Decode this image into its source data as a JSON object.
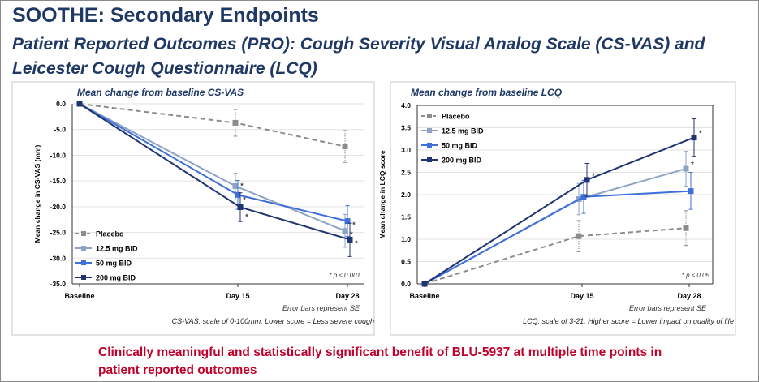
{
  "title": "SOOTHE: Secondary Endpoints",
  "subtitle": "Patient Reported Outcomes (PRO): Cough Severity Visual Analog Scale (CS-VAS) and Leicester Cough Questionnaire (LCQ)",
  "footer": "Clinically meaningful and statistically significant benefit of BLU-5937 at multiple time points in patient reported outcomes",
  "chart_data": [
    {
      "type": "line",
      "title": "Mean change from baseline CS-VAS",
      "ylabel": "Mean change in CS-VAS (mm)",
      "categories": [
        "Baseline",
        "Day 15",
        "Day 28"
      ],
      "ylim": [
        -35,
        0
      ],
      "yticks": [
        "0.0",
        "-5.0",
        "-10.0",
        "-15.0",
        "-20.0",
        "-25.0",
        "-30.0",
        "-35.0"
      ],
      "grid": true,
      "legend": "bottom-left",
      "significance_note": "* p ≤ 0.001",
      "error_note": "Error bars represent SE",
      "scale_note": "CS-VAS: scale of 0-100mm; Lower score = Less severe cough",
      "series": [
        {
          "name": "Placebo",
          "color": "#8c8c8c",
          "dashed": true,
          "values": [
            0,
            -3.7,
            -8.3
          ],
          "err": [
            null,
            [
              -1.1,
              -6.3
            ],
            [
              -5.2,
              -11.4
            ]
          ],
          "sig": [
            false,
            false,
            false
          ]
        },
        {
          "name": "12.5 mg BID",
          "color": "#8ea3c4",
          "dashed": false,
          "values": [
            0,
            -16.0,
            -24.7
          ],
          "err": [
            null,
            [
              -13.5,
              -18.7
            ],
            [
              -21.5,
              -27.9
            ]
          ],
          "sig": [
            false,
            true,
            true
          ]
        },
        {
          "name": "50 mg BID",
          "color": "#3f6fd8",
          "dashed": false,
          "values": [
            0,
            -17.7,
            -22.8
          ],
          "err": [
            null,
            [
              -14.9,
              -20.5
            ],
            [
              -19.8,
              -25.8
            ]
          ],
          "sig": [
            false,
            true,
            true
          ]
        },
        {
          "name": "200 mg BID",
          "color": "#1f3470",
          "dashed": false,
          "values": [
            0,
            -20.1,
            -26.4
          ],
          "err": [
            null,
            [
              -17.3,
              -22.9
            ],
            [
              -23.2,
              -29.7
            ]
          ],
          "sig": [
            false,
            true,
            true
          ]
        }
      ]
    },
    {
      "type": "line",
      "title": "Mean change from baseline LCQ",
      "ylabel": "Mean change in LCQ score",
      "categories": [
        "Baseline",
        "Day 15",
        "Day 28"
      ],
      "ylim": [
        0,
        4
      ],
      "yticks": [
        "0.0",
        "0.5",
        "1.0",
        "1.5",
        "2.0",
        "2.5",
        "3.0",
        "3.5",
        "4.0"
      ],
      "grid": true,
      "legend": "top-left",
      "significance_note": "* p ≤ 0.05",
      "error_note": "Error bars represent SE",
      "scale_note": "LCQ: scale of 3-21; Higher score = Lower impact on quality of life",
      "series": [
        {
          "name": "Placebo",
          "color": "#8c8c8c",
          "dashed": true,
          "values": [
            0,
            1.07,
            1.25
          ],
          "err": [
            null,
            [
              0.72,
              1.42
            ],
            [
              0.86,
              1.64
            ]
          ],
          "sig": [
            false,
            false,
            false
          ]
        },
        {
          "name": "12.5 mg BID",
          "color": "#8ea3c4",
          "dashed": false,
          "values": [
            0,
            1.9,
            2.58
          ],
          "err": [
            null,
            [
              1.55,
              2.25
            ],
            [
              2.19,
              2.97
            ]
          ],
          "sig": [
            false,
            false,
            true
          ]
        },
        {
          "name": "50 mg BID",
          "color": "#3f6fd8",
          "dashed": false,
          "values": [
            0,
            1.95,
            2.08
          ],
          "err": [
            null,
            [
              1.58,
              2.32
            ],
            [
              1.67,
              2.5
            ]
          ],
          "sig": [
            false,
            false,
            false
          ]
        },
        {
          "name": "200 mg BID",
          "color": "#1f3470",
          "dashed": false,
          "values": [
            0,
            2.33,
            3.28
          ],
          "err": [
            null,
            [
              1.96,
              2.7
            ],
            [
              2.86,
              3.7
            ]
          ],
          "sig": [
            false,
            true,
            true
          ]
        }
      ]
    }
  ]
}
